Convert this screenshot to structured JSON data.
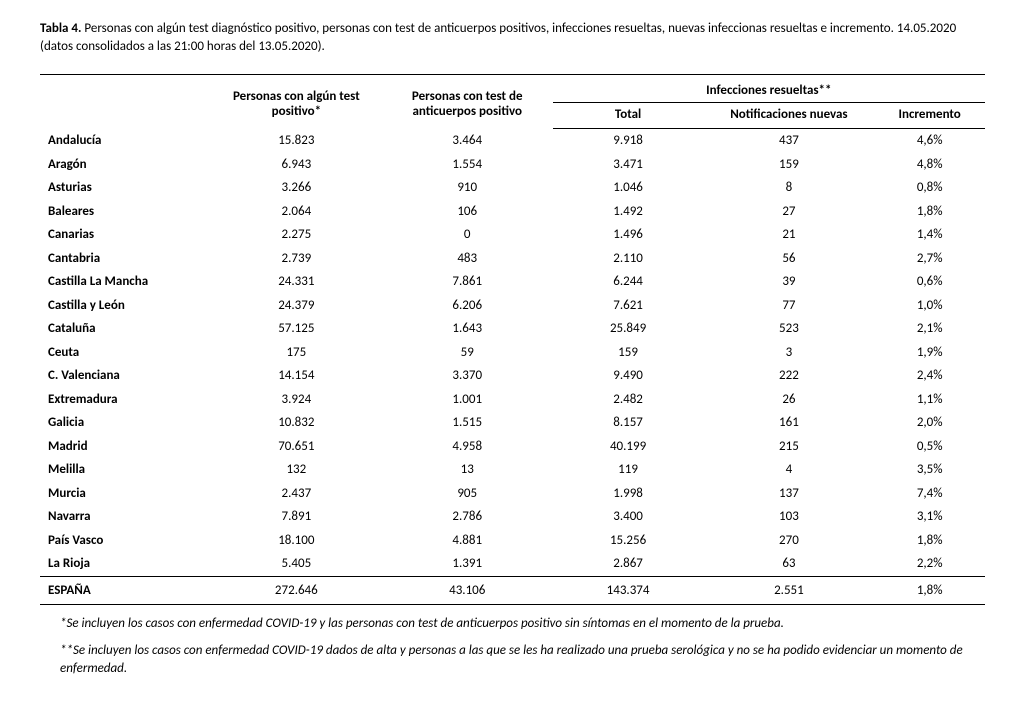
{
  "caption": {
    "label": "Tabla 4.",
    "text": "Personas con algún test diagnóstico positivo, personas con test de anticuerpos positivos, infecciones resueltas, nuevas infeccionas resueltas e incremento. 14.05.2020 (datos consolidados a las 21:00 horas del 13.05.2020)."
  },
  "headers": {
    "col1": "Personas con algún test positivo*",
    "col2": "Personas con test de anticuerpos positivo",
    "group": "Infecciones resueltas**",
    "col3": "Total",
    "col4": "Notificaciones nuevas",
    "col5": "Incremento"
  },
  "rows": [
    {
      "region": "Andalucía",
      "a": "15.823",
      "b": "3.464",
      "c": "9.918",
      "d": "437",
      "e": "4,6%"
    },
    {
      "region": "Aragón",
      "a": "6.943",
      "b": "1.554",
      "c": "3.471",
      "d": "159",
      "e": "4,8%"
    },
    {
      "region": "Asturias",
      "a": "3.266",
      "b": "910",
      "c": "1.046",
      "d": "8",
      "e": "0,8%"
    },
    {
      "region": "Baleares",
      "a": "2.064",
      "b": "106",
      "c": "1.492",
      "d": "27",
      "e": "1,8%"
    },
    {
      "region": "Canarias",
      "a": "2.275",
      "b": "0",
      "c": "1.496",
      "d": "21",
      "e": "1,4%"
    },
    {
      "region": "Cantabria",
      "a": "2.739",
      "b": "483",
      "c": "2.110",
      "d": "56",
      "e": "2,7%"
    },
    {
      "region": "Castilla La Mancha",
      "a": "24.331",
      "b": "7.861",
      "c": "6.244",
      "d": "39",
      "e": "0,6%"
    },
    {
      "region": "Castilla y León",
      "a": "24.379",
      "b": "6.206",
      "c": "7.621",
      "d": "77",
      "e": "1,0%"
    },
    {
      "region": "Cataluña",
      "a": "57.125",
      "b": "1.643",
      "c": "25.849",
      "d": "523",
      "e": "2,1%"
    },
    {
      "region": "Ceuta",
      "a": "175",
      "b": "59",
      "c": "159",
      "d": "3",
      "e": "1,9%"
    },
    {
      "region": "C. Valenciana",
      "a": "14.154",
      "b": "3.370",
      "c": "9.490",
      "d": "222",
      "e": "2,4%"
    },
    {
      "region": "Extremadura",
      "a": "3.924",
      "b": "1.001",
      "c": "2.482",
      "d": "26",
      "e": "1,1%"
    },
    {
      "region": "Galicia",
      "a": "10.832",
      "b": "1.515",
      "c": "8.157",
      "d": "161",
      "e": "2,0%"
    },
    {
      "region": "Madrid",
      "a": "70.651",
      "b": "4.958",
      "c": "40.199",
      "d": "215",
      "e": "0,5%"
    },
    {
      "region": "Melilla",
      "a": "132",
      "b": "13",
      "c": "119",
      "d": "4",
      "e": "3,5%"
    },
    {
      "region": "Murcia",
      "a": "2.437",
      "b": "905",
      "c": "1.998",
      "d": "137",
      "e": "7,4%"
    },
    {
      "region": "Navarra",
      "a": "7.891",
      "b": "2.786",
      "c": "3.400",
      "d": "103",
      "e": "3,1%"
    },
    {
      "region": "País Vasco",
      "a": "18.100",
      "b": "4.881",
      "c": "15.256",
      "d": "270",
      "e": "1,8%"
    },
    {
      "region": "La Rioja",
      "a": "5.405",
      "b": "1.391",
      "c": "2.867",
      "d": "63",
      "e": "2,2%"
    }
  ],
  "total": {
    "region": "ESPAÑA",
    "a": "272.646",
    "b": "43.106",
    "c": "143.374",
    "d": "2.551",
    "e": "1,8%"
  },
  "footnotes": {
    "f1": "*Se incluyen los casos con enfermedad COVID-19 y las personas con test de anticuerpos positivo sin síntomas en el momento de la prueba.",
    "f2": "**Se incluyen los casos con enfermedad COVID-19 dados de alta y personas a las que se les ha realizado una prueba serológica y no se ha podido evidenciar un momento de enfermedad."
  }
}
